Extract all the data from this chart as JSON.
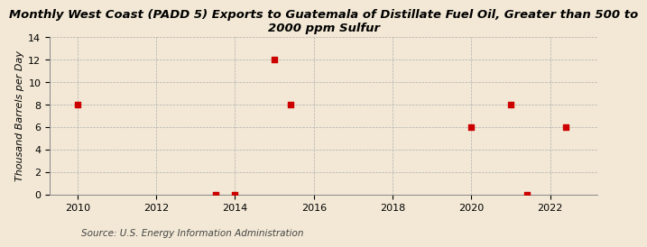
{
  "title": "Monthly West Coast (PADD 5) Exports to Guatemala of Distillate Fuel Oil, Greater than 500 to\n2000 ppm Sulfur",
  "ylabel": "Thousand Barrels per Day",
  "source": "Source: U.S. Energy Information Administration",
  "background_color": "#f2e8d5",
  "plot_bg_color": "#f2e8d5",
  "data_x": [
    2010.0,
    2013.5,
    2014.0,
    2015.0,
    2015.4,
    2020.0,
    2021.0,
    2021.4,
    2022.4
  ],
  "data_y": [
    8,
    0,
    0,
    12,
    8,
    6,
    8,
    0,
    6
  ],
  "marker_color": "#cc0000",
  "marker_size": 4,
  "xlim": [
    2009.3,
    2023.2
  ],
  "ylim": [
    0,
    14
  ],
  "xticks": [
    2010,
    2012,
    2014,
    2016,
    2018,
    2020,
    2022
  ],
  "yticks": [
    0,
    2,
    4,
    6,
    8,
    10,
    12,
    14
  ],
  "grid_color": "#aaaaaa",
  "title_fontsize": 9.5,
  "axis_fontsize": 8,
  "source_fontsize": 7.5
}
